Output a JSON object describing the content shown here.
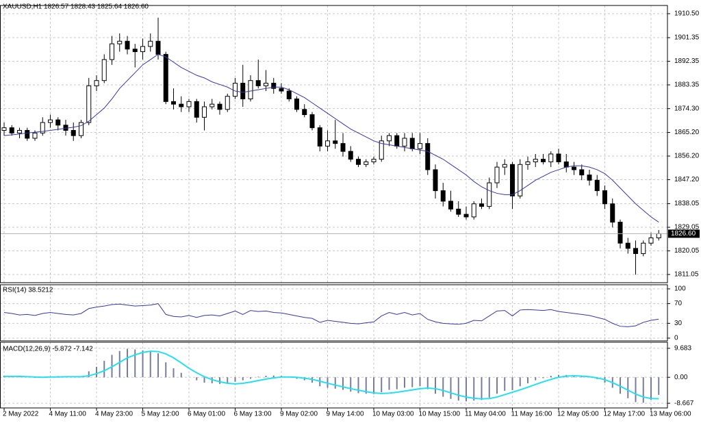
{
  "chart_data": [
    {
      "type": "candlestick",
      "title": "XAUUSD,H1  1826.57 1828.43 1825.64 1826.60",
      "categories": [
        "2 May 2022",
        null,
        null,
        null,
        null,
        null,
        "4 May 11:00",
        null,
        null,
        null,
        null,
        null,
        "4 May 23:00",
        null,
        null,
        null,
        null,
        null,
        "5 May 12:00",
        null,
        null,
        null,
        null,
        null,
        "6 May 01:00",
        null,
        null,
        null,
        null,
        null,
        "6 May 13:00",
        null,
        null,
        null,
        null,
        null,
        "9 May 02:00",
        null,
        null,
        null,
        null,
        null,
        "9 May 14:00",
        null,
        null,
        null,
        null,
        null,
        "10 May 03:00",
        null,
        null,
        null,
        null,
        null,
        "10 May 15:00",
        null,
        null,
        null,
        null,
        null,
        "11 May 04:00",
        null,
        null,
        null,
        null,
        null,
        "11 May 16:00",
        null,
        null,
        null,
        null,
        null,
        "12 May 05:00",
        null,
        null,
        null,
        null,
        null,
        "12 May 17:00",
        null,
        null,
        null,
        null,
        null,
        "13 May 06:00",
        null
      ],
      "open": [
        1866,
        1867,
        1865,
        1866,
        1863,
        1865,
        1869,
        1870,
        1868,
        1866,
        1864,
        1869,
        1883,
        1885,
        1893,
        1899,
        1900,
        1897,
        1896,
        1898,
        1900,
        1895,
        1877,
        1876,
        1875,
        1877,
        1871,
        1875,
        1876,
        1874,
        1879,
        1884,
        1878,
        1885,
        1883,
        1884,
        1882,
        1881,
        1878,
        1874,
        1872,
        1867,
        1860,
        1862,
        1861,
        1858,
        1855,
        1853,
        1854,
        1855,
        1862,
        1864,
        1860,
        1863,
        1859,
        1861,
        1851,
        1843,
        1839,
        1836,
        1834,
        1833,
        1838,
        1837,
        1846,
        1852,
        1853,
        1841,
        1853,
        1854,
        1855,
        1854,
        1857,
        1854,
        1852,
        1851,
        1849,
        1847,
        1843,
        1838,
        1831,
        1823,
        1821,
        1819,
        1823,
        1825
      ],
      "high": [
        1869,
        1868,
        1867,
        1867,
        1866,
        1871,
        1872,
        1871,
        1870,
        1869,
        1870,
        1886,
        1887,
        1895,
        1902,
        1903,
        1902,
        1899,
        1901,
        1903,
        1909,
        1896,
        1882,
        1879,
        1878,
        1878,
        1877,
        1878,
        1877,
        1880,
        1886,
        1891,
        1887,
        1893,
        1889,
        1886,
        1884,
        1882,
        1879,
        1876,
        1873,
        1868,
        1866,
        1870,
        1865,
        1860,
        1856,
        1855,
        1856,
        1864,
        1865,
        1865,
        1865,
        1865,
        1865,
        1863,
        1853,
        1846,
        1843,
        1839,
        1837,
        1839,
        1840,
        1848,
        1854,
        1855,
        1854,
        1855,
        1856,
        1857,
        1857,
        1858,
        1859,
        1857,
        1854,
        1853,
        1851,
        1849,
        1845,
        1840,
        1832,
        1825,
        1824,
        1824,
        1827,
        1828
      ],
      "low": [
        1864,
        1864,
        1863,
        1862,
        1862,
        1864,
        1867,
        1866,
        1864,
        1862,
        1863,
        1868,
        1881,
        1884,
        1891,
        1896,
        1895,
        1890,
        1893,
        1896,
        1893,
        1876,
        1874,
        1873,
        1873,
        1869,
        1866,
        1874,
        1872,
        1873,
        1878,
        1875,
        1877,
        1882,
        1881,
        1880,
        1880,
        1877,
        1873,
        1871,
        1866,
        1858,
        1858,
        1859,
        1856,
        1854,
        1852,
        1852,
        1853,
        1854,
        1860,
        1859,
        1858,
        1858,
        1857,
        1849,
        1840,
        1837,
        1835,
        1833,
        1832,
        1832,
        1836,
        1836,
        1844,
        1849,
        1836,
        1840,
        1851,
        1852,
        1853,
        1852,
        1853,
        1850,
        1849,
        1847,
        1845,
        1841,
        1836,
        1829,
        1821,
        1819,
        1811,
        1818,
        1822,
        1824
      ],
      "close": [
        1867,
        1865,
        1866,
        1863,
        1865,
        1869,
        1870,
        1868,
        1866,
        1864,
        1869,
        1883,
        1885,
        1893,
        1899,
        1900,
        1897,
        1896,
        1898,
        1900,
        1895,
        1877,
        1876,
        1875,
        1877,
        1871,
        1875,
        1876,
        1874,
        1879,
        1884,
        1878,
        1885,
        1883,
        1884,
        1882,
        1881,
        1878,
        1874,
        1872,
        1867,
        1860,
        1862,
        1861,
        1858,
        1855,
        1853,
        1854,
        1855,
        1862,
        1864,
        1860,
        1863,
        1859,
        1861,
        1851,
        1843,
        1839,
        1836,
        1834,
        1833,
        1838,
        1837,
        1846,
        1852,
        1853,
        1841,
        1853,
        1854,
        1855,
        1854,
        1857,
        1854,
        1852,
        1851,
        1849,
        1847,
        1843,
        1838,
        1831,
        1823,
        1821,
        1819,
        1823,
        1825,
        1826.6
      ],
      "ma": {
        "color": "#3636a8",
        "values": [
          1864,
          1864.3,
          1864.6,
          1865,
          1865.3,
          1865.6,
          1866,
          1866.4,
          1866.8,
          1867.2,
          1867.8,
          1869.5,
          1872,
          1874.5,
          1878,
          1882,
          1885,
          1888,
          1891,
          1893,
          1895,
          1894,
          1892,
          1890,
          1888.5,
          1887,
          1886,
          1884.5,
          1883.5,
          1882.5,
          1881,
          1880.5,
          1881,
          1881.5,
          1882,
          1882.5,
          1882.5,
          1881.5,
          1880,
          1878.5,
          1876.5,
          1874.5,
          1872.5,
          1870.5,
          1868.5,
          1866.5,
          1865,
          1863.5,
          1862,
          1861,
          1860.5,
          1860,
          1859.5,
          1859,
          1858.5,
          1858,
          1856.5,
          1855,
          1853,
          1851,
          1849,
          1846.5,
          1844.5,
          1843,
          1842,
          1841.5,
          1841.5,
          1843,
          1845,
          1847,
          1848.5,
          1850,
          1851,
          1852,
          1852.5,
          1852.5,
          1852,
          1851,
          1849.5,
          1847,
          1844,
          1841,
          1838,
          1835.5,
          1833,
          1831
        ]
      },
      "up_color": "#ffffff",
      "down_color": "#000000",
      "current_price": {
        "value": 1826.6,
        "label": "1826.60"
      },
      "ylim": [
        1807.92,
        1913.63
      ],
      "yticks": [
        {
          "value": 1910.5,
          "label": "1910.50"
        },
        1901.35,
        1892.35,
        1883.35,
        {
          "value": 1874.3,
          "label": "1874.30"
        },
        {
          "value": 1865.2,
          "label": "1865.20"
        },
        {
          "value": 1856.2,
          "label": "1856.20"
        },
        {
          "value": 1847.2,
          "label": "1847.20"
        },
        1838.05,
        1829.05,
        1820.05,
        1811.05
      ],
      "grid": true
    },
    {
      "type": "line",
      "title": "RSI(14) 38.5212",
      "color": "#3636a8",
      "values": [
        52,
        50,
        47,
        48,
        46,
        50,
        52,
        50,
        48,
        47,
        50,
        60,
        63,
        65,
        68,
        69,
        67,
        65,
        66,
        67,
        70,
        48,
        44,
        43,
        46,
        42,
        46,
        47,
        45,
        50,
        55,
        48,
        56,
        54,
        55,
        52,
        51,
        48,
        45,
        42,
        40,
        32,
        36,
        34,
        32,
        30,
        29,
        31,
        33,
        45,
        52,
        48,
        52,
        47,
        50,
        38,
        33,
        30,
        29,
        28,
        30,
        36,
        35,
        45,
        55,
        56,
        45,
        57,
        58,
        57,
        56,
        58,
        54,
        52,
        50,
        48,
        46,
        42,
        38,
        30,
        24,
        23,
        25,
        32,
        36,
        38.5212
      ],
      "ylim": [
        -5.6,
        108.3
      ],
      "yticks": [
        100,
        70,
        30,
        0
      ],
      "grid": true
    },
    {
      "type": "macd",
      "title": "MACD(12,26,9) -5.872 -7.142",
      "histogram": {
        "color": "#7a7a9a",
        "values": [
          0.5,
          0.4,
          0.2,
          0,
          -0.2,
          0,
          0.3,
          0.4,
          0.2,
          0,
          0.2,
          2,
          3.5,
          5.5,
          7.5,
          8.8,
          9.5,
          9.3,
          9,
          8.5,
          8,
          5,
          3,
          1.5,
          0,
          -1,
          -1.8,
          -2,
          -2.2,
          -2,
          -1.5,
          -1,
          -0.5,
          0.2,
          0.5,
          0.6,
          0.5,
          0.2,
          -0.5,
          -1,
          -1.8,
          -3,
          -3.5,
          -3.8,
          -4.2,
          -4.8,
          -5.3,
          -5.5,
          -5.6,
          -5,
          -4.2,
          -4,
          -3.5,
          -3.3,
          -3,
          -4,
          -5.5,
          -6.5,
          -7.2,
          -7.8,
          -8,
          -7.8,
          -7.6,
          -6.8,
          -5.5,
          -4.5,
          -4.3,
          -3,
          -2,
          -1,
          -0.3,
          0.5,
          0.8,
          0.8,
          0.6,
          0.3,
          0,
          -0.6,
          -1.8,
          -3.5,
          -5.5,
          -7,
          -8.3,
          -8.5,
          -7.5,
          -5.872
        ]
      },
      "signal": {
        "color": "#22e0f0",
        "values": [
          0.3,
          0.3,
          0.3,
          0.2,
          0.1,
          0,
          0.1,
          0.1,
          0.2,
          0.2,
          0.2,
          0.5,
          1.2,
          2.2,
          3.5,
          5,
          6.5,
          7.5,
          8.3,
          8.7,
          8.6,
          7.8,
          6.5,
          4.8,
          3,
          1.5,
          0.2,
          -0.8,
          -1.5,
          -2,
          -2.2,
          -2,
          -1.6,
          -1.1,
          -0.6,
          -0.2,
          0.1,
          0.1,
          0,
          -0.3,
          -0.7,
          -1.3,
          -2,
          -2.6,
          -3.2,
          -3.8,
          -4.3,
          -4.8,
          -5.2,
          -5.4,
          -5.3,
          -5,
          -4.6,
          -4.2,
          -3.8,
          -3.6,
          -3.8,
          -4.4,
          -5.2,
          -6,
          -6.6,
          -7,
          -7.2,
          -7.1,
          -6.6,
          -5.8,
          -5,
          -4.2,
          -3.3,
          -2.4,
          -1.5,
          -0.7,
          0,
          0.4,
          0.5,
          0.4,
          0.2,
          -0.2,
          -0.8,
          -1.8,
          -3,
          -4.3,
          -5.6,
          -6.6,
          -7.1,
          -7.142
        ]
      },
      "ylim": [
        -10.24,
        11.71
      ],
      "yticks": [
        9.683,
        {
          "value": 0,
          "label": "0.00"
        },
        -8.667
      ],
      "grid": true
    }
  ]
}
